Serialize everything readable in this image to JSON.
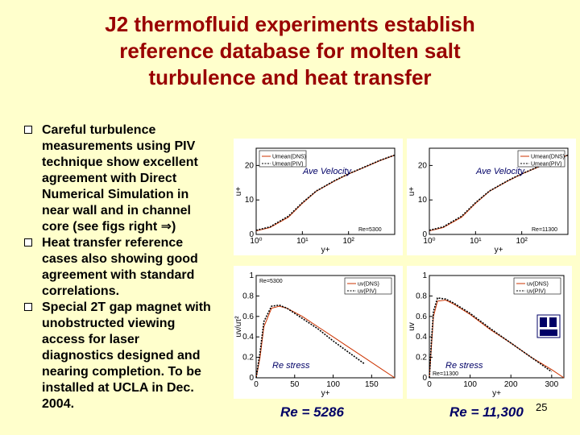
{
  "slide": {
    "title_lines": [
      "J2 thermofluid experiments establish",
      "reference database for molten salt",
      "turbulence and heat transfer"
    ],
    "bullets": [
      {
        "lines": [
          "Careful turbulence",
          "measurements using PIV",
          "technique show excellent",
          "agreement with Direct",
          "Numerical Simulation in",
          "near wall and in channel",
          "core  (see figs right ⇒)"
        ]
      },
      {
        "lines": [
          "Heat transfer reference",
          "cases also showing good",
          "agreement with standard",
          "correlations."
        ]
      },
      {
        "lines": [
          "Special 2T gap magnet with",
          "unobstructed viewing",
          "access for laser",
          "diagnostics designed and",
          "nearing completion. To be",
          "installed at UCLA in Dec.",
          "2004."
        ]
      }
    ],
    "page_number": "25",
    "re_left": "Re = 5286",
    "re_right": "Re = 11,300"
  },
  "chart_data": [
    {
      "type": "line",
      "title": "Ave Velocity",
      "xlabel": "y+",
      "ylabel": "u+",
      "x_scale": "log",
      "x_ticks": [
        "10⁰",
        "10¹",
        "10²"
      ],
      "y_ticks": [
        "0",
        "10",
        "20"
      ],
      "ylim": [
        0,
        25
      ],
      "legend": [
        "Umean(DNS)",
        "Umean(PIV)"
      ],
      "legend_position": "top-left",
      "annotation": "Re=5300",
      "series": [
        {
          "name": "Umean(DNS)",
          "x": [
            1,
            2,
            5,
            10,
            20,
            50,
            100,
            200,
            500,
            1000
          ],
          "y": [
            1,
            2,
            5,
            9,
            12.5,
            15.5,
            17.5,
            19.2,
            21.5,
            23
          ]
        },
        {
          "name": "Umean(PIV)",
          "x": [
            1,
            2,
            5,
            10,
            20,
            50,
            100,
            200,
            500,
            1000
          ],
          "y": [
            1.2,
            2.2,
            5.3,
            9.2,
            12.6,
            15.6,
            17.6,
            19.3,
            21.6,
            23
          ]
        }
      ]
    },
    {
      "type": "line",
      "title": "Ave Velocity",
      "xlabel": "y+",
      "ylabel": "u+",
      "x_scale": "log",
      "x_ticks": [
        "10⁰",
        "10¹",
        "10²"
      ],
      "y_ticks": [
        "0",
        "10",
        "20"
      ],
      "ylim": [
        0,
        25
      ],
      "legend": [
        "Umean(DNS)",
        "Umean(PIV)"
      ],
      "legend_position": "top-right",
      "annotation": "Re=11300",
      "series": [
        {
          "name": "Umean(DNS)",
          "x": [
            1,
            2,
            5,
            10,
            20,
            50,
            100,
            200,
            500,
            1000
          ],
          "y": [
            1,
            2,
            5,
            9,
            12.5,
            15.5,
            17.5,
            19.2,
            21.5,
            23
          ]
        },
        {
          "name": "Umean(PIV)",
          "x": [
            1,
            2,
            5,
            10,
            20,
            50,
            100,
            200,
            500,
            1000
          ],
          "y": [
            1.2,
            2.2,
            5.3,
            9.2,
            12.6,
            15.6,
            17.6,
            19.3,
            21.6,
            23
          ]
        }
      ]
    },
    {
      "type": "line",
      "title": "Re stress",
      "xlabel": "y+",
      "ylabel": "uv/uτ²",
      "x_ticks": [
        "0",
        "50",
        "100",
        "150"
      ],
      "y_ticks": [
        "0",
        "0.2",
        "0.4",
        "0.6",
        "0.8",
        "1"
      ],
      "xlim": [
        0,
        180
      ],
      "ylim": [
        0,
        1
      ],
      "legend": [
        "uv(DNS)",
        "uv(PIV)"
      ],
      "legend_position": "top-right",
      "annotation": "Re=5300",
      "series": [
        {
          "name": "uv(DNS)",
          "x": [
            0,
            5,
            10,
            20,
            30,
            40,
            60,
            80,
            100,
            120,
            140,
            160,
            180
          ],
          "y": [
            0,
            0.2,
            0.5,
            0.68,
            0.7,
            0.68,
            0.6,
            0.5,
            0.4,
            0.3,
            0.2,
            0.1,
            0
          ]
        },
        {
          "name": "uv(PIV)",
          "x": [
            0,
            5,
            10,
            20,
            30,
            40,
            60,
            80,
            100,
            120,
            140
          ],
          "y": [
            0,
            0.25,
            0.55,
            0.7,
            0.71,
            0.68,
            0.58,
            0.48,
            0.36,
            0.25,
            0.14
          ]
        }
      ]
    },
    {
      "type": "line",
      "title": "Re stress",
      "xlabel": "y+",
      "ylabel": "uv",
      "x_ticks": [
        "0",
        "100",
        "200",
        "300"
      ],
      "y_ticks": [
        "0",
        "0.2",
        "0.4",
        "0.6",
        "0.8",
        "1"
      ],
      "xlim": [
        0,
        330
      ],
      "ylim": [
        0,
        1
      ],
      "legend": [
        "uv(DNS)",
        "uv(PIV)"
      ],
      "legend_position": "top-right",
      "annotation": "Re=11300",
      "series": [
        {
          "name": "uv(DNS)",
          "x": [
            0,
            5,
            10,
            20,
            40,
            60,
            100,
            150,
            200,
            250,
            300,
            330
          ],
          "y": [
            0,
            0.3,
            0.6,
            0.75,
            0.76,
            0.72,
            0.62,
            0.47,
            0.34,
            0.2,
            0.08,
            0
          ]
        },
        {
          "name": "uv(PIV)",
          "x": [
            0,
            5,
            10,
            20,
            40,
            60,
            100,
            150,
            200,
            250,
            300
          ],
          "y": [
            0,
            0.35,
            0.65,
            0.78,
            0.77,
            0.73,
            0.63,
            0.48,
            0.34,
            0.2,
            0.06
          ]
        }
      ]
    }
  ]
}
